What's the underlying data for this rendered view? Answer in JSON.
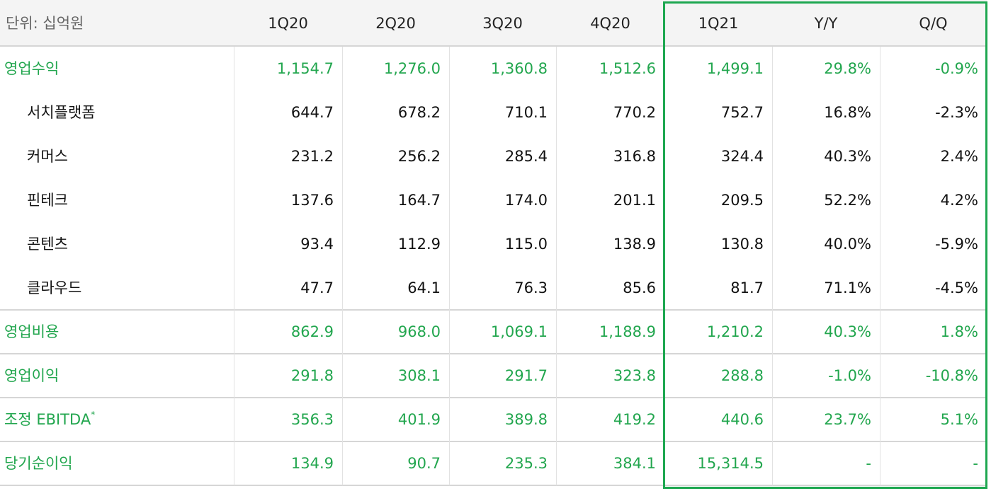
{
  "table": {
    "header": [
      "단위: 십억원",
      "1Q20",
      "2Q20",
      "3Q20",
      "4Q20",
      "1Q21",
      "Y/Y",
      "Q/Q"
    ],
    "rows": [
      {
        "label": "영업수익",
        "cells": [
          "1,154.7",
          "1,276.0",
          "1,360.8",
          "1,512.6",
          "1,499.1",
          "29.8%",
          "-0.9%"
        ],
        "segments": [
          {
            "label": "서치플랫폼",
            "cells": [
              "644.7",
              "678.2",
              "710.1",
              "770.2",
              "752.7",
              "16.8%",
              "-2.3%"
            ]
          },
          {
            "label": "커머스",
            "cells": [
              "231.2",
              "256.2",
              "285.4",
              "316.8",
              "324.4",
              "40.3%",
              "2.4%"
            ]
          },
          {
            "label": "핀테크",
            "cells": [
              "137.6",
              "164.7",
              "174.0",
              "201.1",
              "209.5",
              "52.2%",
              "4.2%"
            ]
          },
          {
            "label": "콘텐츠",
            "cells": [
              "93.4",
              "112.9",
              "115.0",
              "138.9",
              "130.8",
              "40.0%",
              "-5.9%"
            ]
          },
          {
            "label": "클라우드",
            "cells": [
              "47.7",
              "64.1",
              "76.3",
              "85.6",
              "81.7",
              "71.1%",
              "-4.5%"
            ]
          }
        ]
      },
      {
        "label": "영업비용",
        "cells": [
          "862.9",
          "968.0",
          "1,069.1",
          "1,188.9",
          "1,210.2",
          "40.3%",
          "1.8%"
        ]
      },
      {
        "label": "영업이익",
        "cells": [
          "291.8",
          "308.1",
          "291.7",
          "323.8",
          "288.8",
          "-1.0%",
          "-10.8%"
        ]
      },
      {
        "label": "조정 EBITDA",
        "note": "*",
        "cells": [
          "356.3",
          "401.9",
          "389.8",
          "419.2",
          "440.6",
          "23.7%",
          "5.1%"
        ]
      },
      {
        "label": "당기순이익",
        "cells": [
          "134.9",
          "90.7",
          "235.3",
          "384.1",
          "15,314.5",
          "-",
          "-"
        ]
      }
    ]
  }
}
